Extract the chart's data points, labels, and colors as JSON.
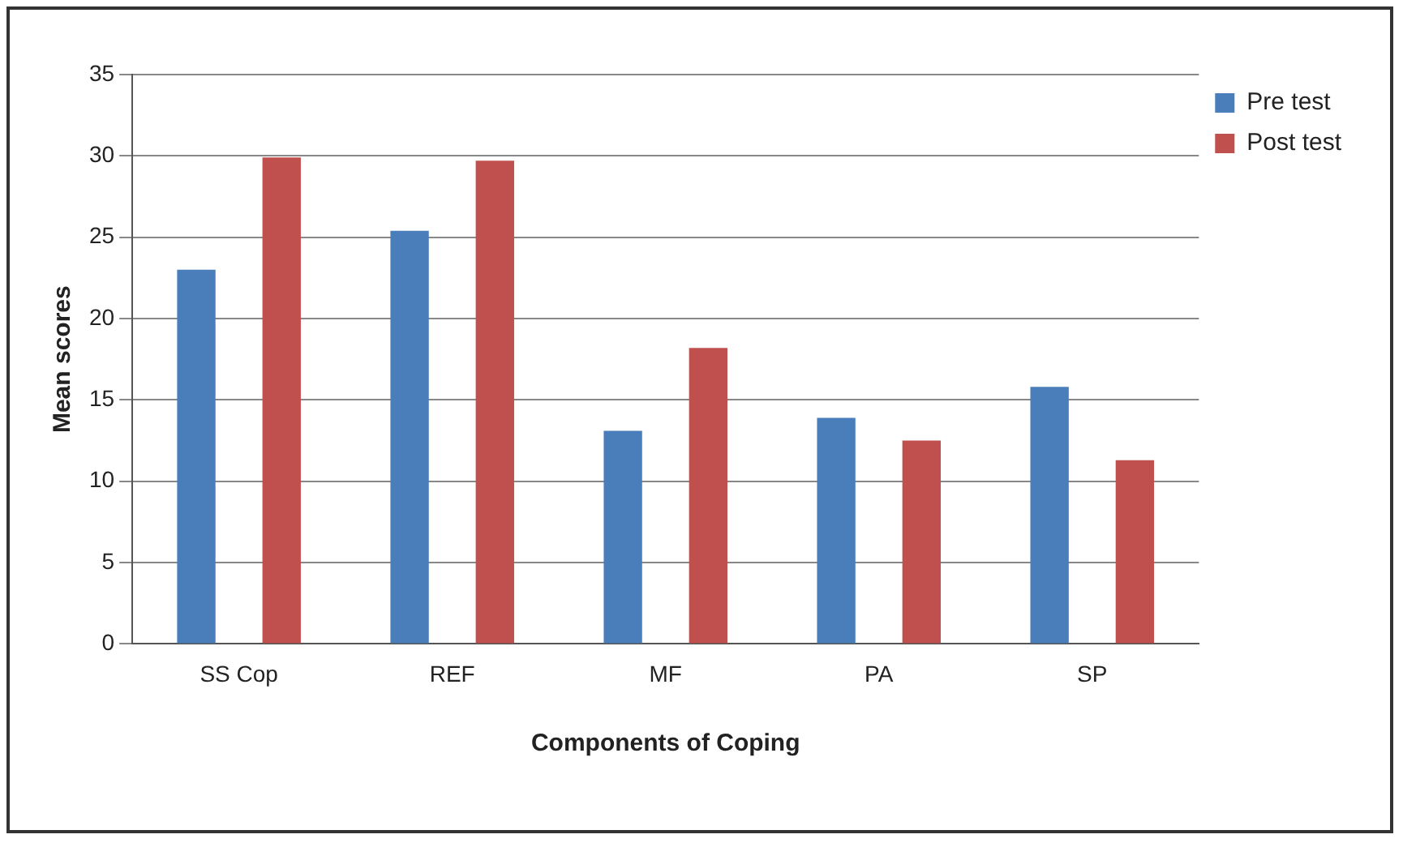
{
  "chart_data": {
    "type": "bar",
    "xlabel": "Components of Coping",
    "ylabel": "Mean scores",
    "categories": [
      "SS Cop",
      "REF",
      "MF",
      "PA",
      "SP"
    ],
    "series": [
      {
        "name": "Pre test",
        "color": "#4a7ebb",
        "values": [
          23,
          25.4,
          13.1,
          13.9,
          15.8
        ]
      },
      {
        "name": "Post test",
        "color": "#c0504d",
        "values": [
          29.9,
          29.7,
          18.2,
          12.5,
          11.3
        ]
      }
    ],
    "ylim": [
      0,
      35
    ],
    "yticks": [
      0,
      5,
      10,
      15,
      20,
      25,
      30,
      35
    ],
    "grid": "y",
    "legend": "top right"
  }
}
